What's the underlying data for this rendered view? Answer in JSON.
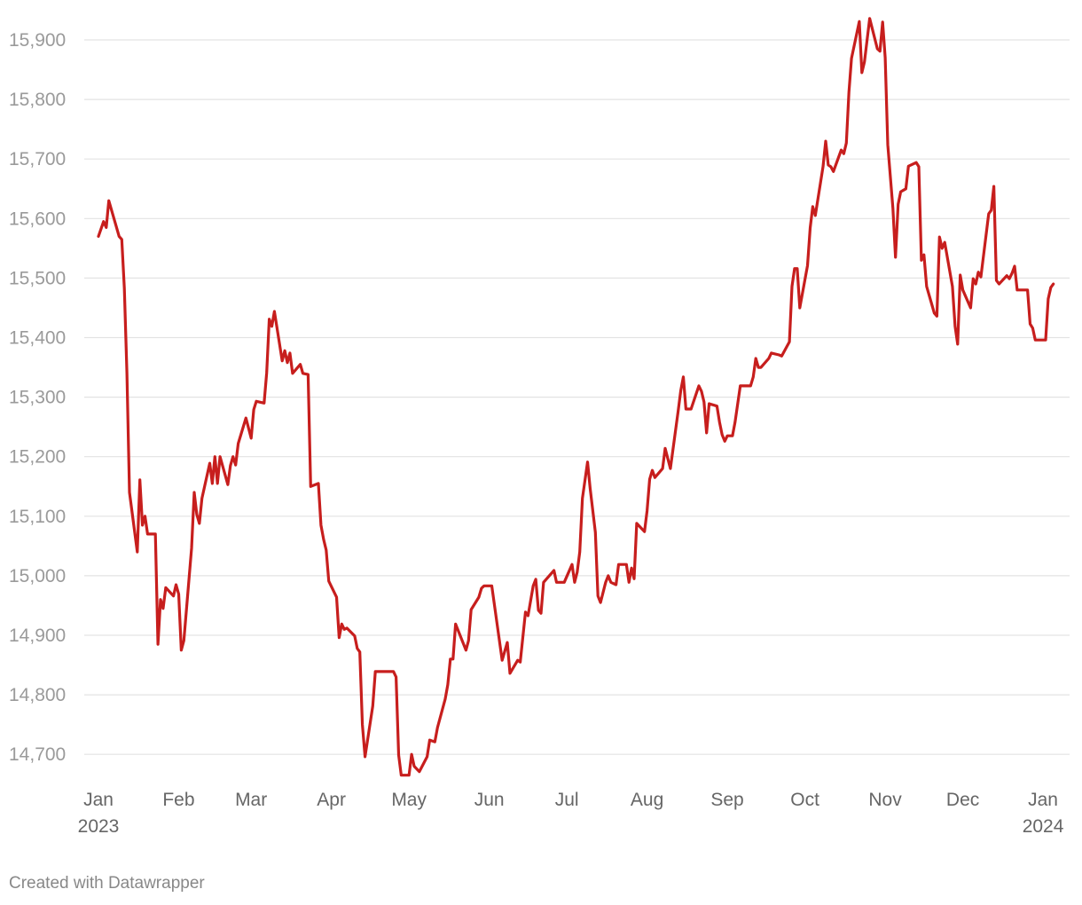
{
  "chart_data": {
    "type": "line",
    "title": "",
    "xlabel": "",
    "ylabel": "",
    "ylim": [
      14665,
      15940
    ],
    "xlim": [
      "2023-01-01",
      "2024-01-06"
    ],
    "grid": true,
    "color": "#c71e1d",
    "y_ticks": [
      {
        "value": 14700,
        "label": "14,700"
      },
      {
        "value": 14800,
        "label": "14,800"
      },
      {
        "value": 14900,
        "label": "14,900"
      },
      {
        "value": 15000,
        "label": "15,000"
      },
      {
        "value": 15100,
        "label": "15,100"
      },
      {
        "value": 15200,
        "label": "15,200"
      },
      {
        "value": 15300,
        "label": "15,300"
      },
      {
        "value": 15400,
        "label": "15,400"
      },
      {
        "value": 15500,
        "label": "15,500"
      },
      {
        "value": 15600,
        "label": "15,600"
      },
      {
        "value": 15700,
        "label": "15,700"
      },
      {
        "value": 15800,
        "label": "15,800"
      },
      {
        "value": 15900,
        "label": "15,900"
      }
    ],
    "x_ticks": [
      {
        "date": "2023-01-01",
        "label": "Jan",
        "sub": "2023"
      },
      {
        "date": "2023-02-01",
        "label": "Feb"
      },
      {
        "date": "2023-03-01",
        "label": "Mar"
      },
      {
        "date": "2023-04-01",
        "label": "Apr"
      },
      {
        "date": "2023-05-01",
        "label": "May"
      },
      {
        "date": "2023-06-01",
        "label": "Jun"
      },
      {
        "date": "2023-07-01",
        "label": "Jul"
      },
      {
        "date": "2023-08-01",
        "label": "Aug"
      },
      {
        "date": "2023-09-01",
        "label": "Sep"
      },
      {
        "date": "2023-10-01",
        "label": "Oct"
      },
      {
        "date": "2023-11-01",
        "label": "Nov"
      },
      {
        "date": "2023-12-01",
        "label": "Dec"
      },
      {
        "date": "2024-01-01",
        "label": "Jan",
        "sub": "2024"
      }
    ],
    "x": [
      "2023-01-01",
      "2023-01-03",
      "2023-01-04",
      "2023-01-05",
      "2023-01-09",
      "2023-01-10",
      "2023-01-11",
      "2023-01-12",
      "2023-01-13",
      "2023-01-16",
      "2023-01-17",
      "2023-01-18",
      "2023-01-19",
      "2023-01-20",
      "2023-01-23",
      "2023-01-24",
      "2023-01-25",
      "2023-01-26",
      "2023-01-27",
      "2023-01-30",
      "2023-01-31",
      "2023-02-01",
      "2023-02-02",
      "2023-02-03",
      "2023-02-06",
      "2023-02-07",
      "2023-02-08",
      "2023-02-09",
      "2023-02-10",
      "2023-02-13",
      "2023-02-14",
      "2023-02-15",
      "2023-02-16",
      "2023-02-17",
      "2023-02-20",
      "2023-02-21",
      "2023-02-22",
      "2023-02-23",
      "2023-02-24",
      "2023-02-27",
      "2023-03-01",
      "2023-03-02",
      "2023-03-03",
      "2023-03-06",
      "2023-03-07",
      "2023-03-08",
      "2023-03-09",
      "2023-03-10",
      "2023-03-13",
      "2023-03-14",
      "2023-03-15",
      "2023-03-16",
      "2023-03-17",
      "2023-03-20",
      "2023-03-21",
      "2023-03-23",
      "2023-03-24",
      "2023-03-27",
      "2023-03-28",
      "2023-03-29",
      "2023-03-30",
      "2023-03-31",
      "2023-04-03",
      "2023-04-04",
      "2023-04-05",
      "2023-04-06",
      "2023-04-07",
      "2023-04-10",
      "2023-04-11",
      "2023-04-12",
      "2023-04-13",
      "2023-04-14",
      "2023-04-17",
      "2023-04-18",
      "2023-04-25",
      "2023-04-26",
      "2023-04-27",
      "2023-04-28",
      "2023-05-01",
      "2023-05-02",
      "2023-05-03",
      "2023-05-05",
      "2023-05-08",
      "2023-05-09",
      "2023-05-11",
      "2023-05-12",
      "2023-05-15",
      "2023-05-16",
      "2023-05-17",
      "2023-05-18",
      "2023-05-19",
      "2023-05-23",
      "2023-05-24",
      "2023-05-25",
      "2023-05-28",
      "2023-05-29",
      "2023-05-30",
      "2023-06-02",
      "2023-06-06",
      "2023-06-08",
      "2023-06-09",
      "2023-06-12",
      "2023-06-13",
      "2023-06-15",
      "2023-06-16",
      "2023-06-18",
      "2023-06-19",
      "2023-06-20",
      "2023-06-21",
      "2023-06-22",
      "2023-06-26",
      "2023-06-27",
      "2023-06-30",
      "2023-07-03",
      "2023-07-04",
      "2023-07-05",
      "2023-07-06",
      "2023-07-07",
      "2023-07-09",
      "2023-07-10",
      "2023-07-12",
      "2023-07-13",
      "2023-07-14",
      "2023-07-16",
      "2023-07-17",
      "2023-07-18",
      "2023-07-20",
      "2023-07-21",
      "2023-07-24",
      "2023-07-25",
      "2023-07-26",
      "2023-07-27",
      "2023-07-28",
      "2023-07-31",
      "2023-08-01",
      "2023-08-02",
      "2023-08-03",
      "2023-08-04",
      "2023-08-07",
      "2023-08-08",
      "2023-08-10",
      "2023-08-13",
      "2023-08-14",
      "2023-08-15",
      "2023-08-16",
      "2023-08-18",
      "2023-08-21",
      "2023-08-22",
      "2023-08-23",
      "2023-08-24",
      "2023-08-25",
      "2023-08-28",
      "2023-08-29",
      "2023-08-30",
      "2023-08-31",
      "2023-09-01",
      "2023-09-03",
      "2023-09-04",
      "2023-09-06",
      "2023-09-10",
      "2023-09-11",
      "2023-09-12",
      "2023-09-13",
      "2023-09-14",
      "2023-09-17",
      "2023-09-18",
      "2023-09-21",
      "2023-09-22",
      "2023-09-25",
      "2023-09-26",
      "2023-09-27",
      "2023-09-28",
      "2023-09-29",
      "2023-10-02",
      "2023-10-03",
      "2023-10-04",
      "2023-10-05",
      "2023-10-08",
      "2023-10-09",
      "2023-10-10",
      "2023-10-11",
      "2023-10-12",
      "2023-10-15",
      "2023-10-16",
      "2023-10-17",
      "2023-10-18",
      "2023-10-19",
      "2023-10-22",
      "2023-10-23",
      "2023-10-24",
      "2023-10-26",
      "2023-10-29",
      "2023-10-30",
      "2023-10-31",
      "2023-11-01",
      "2023-11-02",
      "2023-11-04",
      "2023-11-05",
      "2023-11-06",
      "2023-11-07",
      "2023-11-09",
      "2023-11-10",
      "2023-11-13",
      "2023-11-14",
      "2023-11-15",
      "2023-11-16",
      "2023-11-17",
      "2023-11-20",
      "2023-11-21",
      "2023-11-22",
      "2023-11-23",
      "2023-11-24",
      "2023-11-27",
      "2023-11-28",
      "2023-11-29",
      "2023-11-30",
      "2023-12-01",
      "2023-12-04",
      "2023-12-05",
      "2023-12-06",
      "2023-12-07",
      "2023-12-08",
      "2023-12-11",
      "2023-12-12",
      "2023-12-13",
      "2023-12-14",
      "2023-12-15",
      "2023-12-18",
      "2023-12-19",
      "2023-12-20",
      "2023-12-21",
      "2023-12-22",
      "2023-12-26",
      "2023-12-27",
      "2023-12-28",
      "2023-12-29",
      "2024-01-02",
      "2024-01-03",
      "2024-01-04",
      "2024-01-05"
    ],
    "values": [
      15570,
      15595,
      15585,
      15630,
      15570,
      15565,
      15483,
      15341,
      15140,
      15040,
      15161,
      15085,
      15100,
      15070,
      15070,
      14885,
      14960,
      14945,
      14980,
      14966,
      14985,
      14969,
      14875,
      14891,
      15046,
      15140,
      15103,
      15088,
      15130,
      15189,
      15155,
      15200,
      15155,
      15200,
      15153,
      15185,
      15200,
      15186,
      15222,
      15265,
      15231,
      15279,
      15293,
      15290,
      15341,
      15431,
      15419,
      15444,
      15361,
      15378,
      15358,
      15374,
      15340,
      15355,
      15340,
      15338,
      15150,
      15155,
      15085,
      15061,
      15043,
      14991,
      14964,
      14896,
      14919,
      14910,
      14912,
      14899,
      14878,
      14872,
      14750,
      14696,
      14781,
      14839,
      14839,
      14830,
      14699,
      14665,
      14665,
      14700,
      14680,
      14671,
      14696,
      14724,
      14721,
      14745,
      14793,
      14817,
      14860,
      14860,
      14919,
      14875,
      14891,
      14943,
      14964,
      14979,
      14983,
      14983,
      14858,
      14888,
      14836,
      14858,
      14855,
      14939,
      14933,
      14983,
      14994,
      14942,
      14937,
      14989,
      15009,
      14989,
      14989,
      15019,
      14989,
      15006,
      15040,
      15130,
      15191,
      15147,
      15073,
      14966,
      14955,
      14989,
      15000,
      14989,
      14985,
      15019,
      15019,
      14989,
      15013,
      14995,
      15088,
      15074,
      15109,
      15162,
      15177,
      15165,
      15180,
      15214,
      15180,
      15276,
      15311,
      15334,
      15280,
      15280,
      15319,
      15310,
      15292,
      15240,
      15289,
      15285,
      15258,
      15237,
      15226,
      15235,
      15235,
      15258,
      15319,
      15319,
      15334,
      15365,
      15350,
      15350,
      15365,
      15374,
      15371,
      15369,
      15393,
      15486,
      15516,
      15516,
      15450,
      15521,
      15584,
      15620,
      15605,
      15687,
      15730,
      15690,
      15687,
      15679,
      15715,
      15709,
      15727,
      15812,
      15869,
      15931,
      15845,
      15863,
      15936,
      15885,
      15881,
      15930,
      15870,
      15724,
      15617,
      15535,
      15624,
      15645,
      15650,
      15688,
      15694,
      15687,
      15530,
      15539,
      15486,
      15441,
      15436,
      15569,
      15550,
      15560,
      15486,
      15419,
      15389,
      15505,
      15480,
      15450,
      15499,
      15490,
      15510,
      15502,
      15608,
      15614,
      15654,
      15496,
      15490,
      15504,
      15499,
      15508,
      15520,
      15480,
      15480,
      15423,
      15416,
      15396,
      15396,
      15465,
      15484,
      15490
    ]
  },
  "footer": {
    "credit": "Created with Datawrapper"
  }
}
